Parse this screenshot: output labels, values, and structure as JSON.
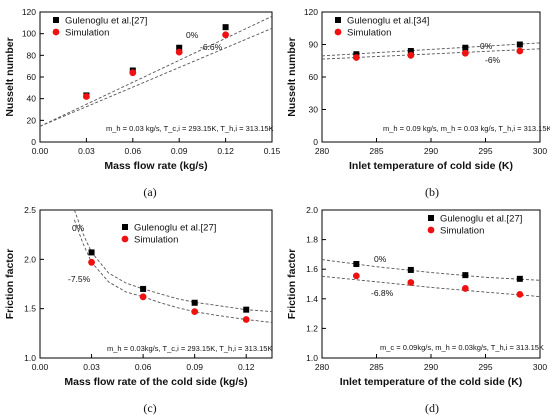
{
  "chart_data": [
    {
      "type": "scatter",
      "panel_label": "(a)",
      "xlabel": "Mass flow rate (kg/s)",
      "ylabel": "Nusselt number",
      "xlim": [
        0.0,
        0.15
      ],
      "ylim": [
        0,
        120
      ],
      "xticks": [
        "0.00",
        "0.03",
        "0.06",
        "0.09",
        "0.12",
        "0.15"
      ],
      "yticks": [
        "0",
        "20",
        "40",
        "60",
        "80",
        "100",
        "120"
      ],
      "legend_position": "top-left",
      "conditions": "m_h = 0.03 kg/s, T_c,i = 293.15K, T_h,i = 313.15K",
      "series": [
        {
          "name": "Gulenoglu et al.[27]",
          "marker": "square",
          "color": "#000000",
          "x": [
            0.03,
            0.06,
            0.09,
            0.12
          ],
          "y": [
            43,
            66,
            87,
            106
          ]
        },
        {
          "name": "Simulation",
          "marker": "circle",
          "color": "#ee1111",
          "x": [
            0.03,
            0.06,
            0.09,
            0.12
          ],
          "y": [
            42,
            64,
            83,
            99
          ]
        }
      ],
      "fit_lines": [
        {
          "label": "0%",
          "x": [
            0.0,
            0.15
          ],
          "y": [
            14.5,
            116
          ]
        },
        {
          "label": "-6.6%",
          "x": [
            0.0,
            0.15
          ],
          "y": [
            14.5,
            105
          ]
        }
      ]
    },
    {
      "type": "scatter",
      "panel_label": "(b)",
      "xlabel": "Inlet temperature of cold side (K)",
      "ylabel": "Nusselt number",
      "xlim": [
        280,
        300
      ],
      "ylim": [
        0,
        120
      ],
      "xticks": [
        "280",
        "285",
        "290",
        "295",
        "300"
      ],
      "yticks": [
        "0",
        "30",
        "60",
        "90",
        "120"
      ],
      "legend_position": "top-left",
      "conditions": "m_h = 0.09 kg/s, m_h = 0.03 kg/s, T_h,i = 313.15K",
      "series": [
        {
          "name": "Gulenoglu et al.[34]",
          "marker": "square",
          "color": "#000000",
          "x": [
            283.15,
            288.15,
            293.15,
            298.15
          ],
          "y": [
            81,
            84,
            87,
            90
          ]
        },
        {
          "name": "Simulation",
          "marker": "circle",
          "color": "#ee1111",
          "x": [
            283.15,
            288.15,
            293.15,
            298.15
          ],
          "y": [
            78,
            80,
            82,
            84
          ]
        }
      ],
      "fit_lines": [
        {
          "label": "0%",
          "x": [
            280,
            300
          ],
          "y": [
            79.5,
            91.5
          ]
        },
        {
          "label": "-6%",
          "x": [
            280,
            300
          ],
          "y": [
            76.5,
            86
          ]
        }
      ]
    },
    {
      "type": "scatter",
      "panel_label": "(c)",
      "xlabel": "Mass flow rate of the cold side (kg/s)",
      "ylabel": "Friction factor",
      "xlim": [
        0.0,
        0.135
      ],
      "ylim": [
        1.0,
        2.5
      ],
      "xticks": [
        "0.00",
        "0.03",
        "0.06",
        "0.09",
        "0.12"
      ],
      "yticks": [
        "1.0",
        "1.5",
        "2.0",
        "2.5"
      ],
      "legend_position": "top-right",
      "conditions": "m_h = 0.03kg/s, T_c,i = 293.15K, T_h,i = 313.15K",
      "series": [
        {
          "name": "Gulenoglu et al.[27]",
          "marker": "square",
          "color": "#000000",
          "x": [
            0.03,
            0.06,
            0.09,
            0.12
          ],
          "y": [
            2.07,
            1.7,
            1.56,
            1.49
          ]
        },
        {
          "name": "Simulation",
          "marker": "circle",
          "color": "#ee1111",
          "x": [
            0.03,
            0.06,
            0.09,
            0.12
          ],
          "y": [
            1.97,
            1.62,
            1.47,
            1.39
          ]
        }
      ],
      "fit_lines": [
        {
          "label": "0%",
          "x": [
            0.02,
            0.025,
            0.03,
            0.04,
            0.05,
            0.06,
            0.07,
            0.08,
            0.09,
            0.1,
            0.11,
            0.12,
            0.135
          ],
          "y": [
            2.5,
            2.26,
            2.07,
            1.86,
            1.76,
            1.7,
            1.65,
            1.6,
            1.565,
            1.54,
            1.515,
            1.49,
            1.47
          ]
        },
        {
          "label": "-7.5%",
          "x": [
            0.02,
            0.025,
            0.03,
            0.04,
            0.05,
            0.06,
            0.07,
            0.08,
            0.09,
            0.1,
            0.11,
            0.12,
            0.135
          ],
          "y": [
            2.4,
            2.16,
            1.97,
            1.77,
            1.67,
            1.62,
            1.56,
            1.51,
            1.47,
            1.44,
            1.415,
            1.39,
            1.36
          ]
        }
      ]
    },
    {
      "type": "scatter",
      "panel_label": "(d)",
      "xlabel": "Inlet temperature of the cold side (K)",
      "ylabel": "Friction factor",
      "xlim": [
        280,
        300
      ],
      "ylim": [
        1.0,
        2.0
      ],
      "xticks": [
        "280",
        "285",
        "290",
        "295",
        "300"
      ],
      "yticks": [
        "1.0",
        "1.2",
        "1.4",
        "1.6",
        "1.8",
        "2.0"
      ],
      "legend_position": "top-right",
      "conditions": "m_c = 0.09kg/s, m_h = 0.03kg/s, T_h,i = 313.15K",
      "series": [
        {
          "name": "Gulenoglu et al.[27]",
          "marker": "square",
          "color": "#000000",
          "x": [
            283.15,
            288.15,
            293.15,
            298.15
          ],
          "y": [
            1.635,
            1.595,
            1.56,
            1.535
          ]
        },
        {
          "name": "Simulation",
          "marker": "circle",
          "color": "#ee1111",
          "x": [
            283.15,
            288.15,
            293.15,
            298.15
          ],
          "y": [
            1.555,
            1.51,
            1.47,
            1.43
          ]
        }
      ],
      "fit_lines": [
        {
          "label": "0%",
          "x": [
            280,
            285,
            290,
            295,
            300
          ],
          "y": [
            1.665,
            1.617,
            1.578,
            1.545,
            1.525
          ]
        },
        {
          "label": "-6.8%",
          "x": [
            280,
            285,
            290,
            295,
            300
          ],
          "y": [
            1.552,
            1.515,
            1.477,
            1.445,
            1.415
          ]
        }
      ]
    }
  ]
}
